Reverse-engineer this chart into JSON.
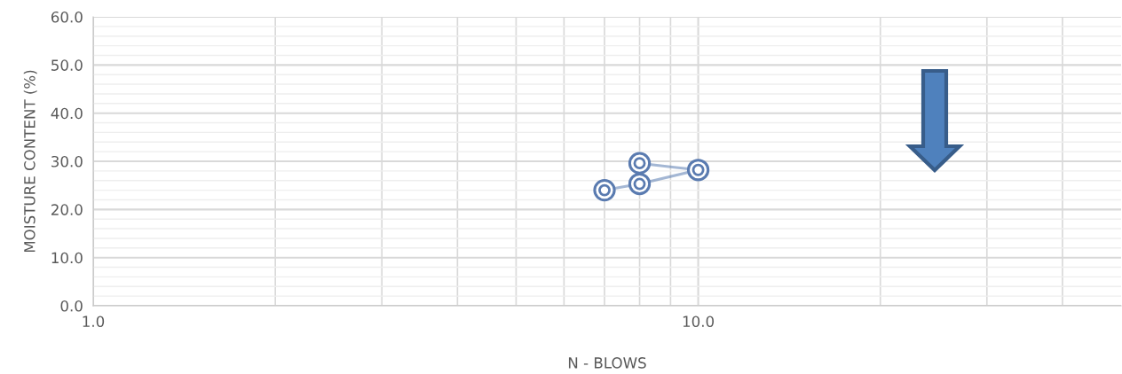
{
  "chart_data": {
    "type": "line",
    "xlabel": "N - BLOWS",
    "ylabel": "MOISTURE CONTENT (%)",
    "log": "x",
    "grid": true,
    "marker": "circle",
    "line_style": "solid",
    "x": [
      7,
      8,
      10,
      8
    ],
    "series": [
      {
        "color": "#5a7bb0",
        "values": [
          24.0,
          25.3,
          28.2,
          29.6
        ]
      }
    ],
    "xlim": [
      1,
      50
    ],
    "xticks": [
      {
        "value": 1,
        "label": "1.0"
      },
      {
        "value": 2,
        "label": null
      },
      {
        "value": 3,
        "label": null
      },
      {
        "value": 4,
        "label": null
      },
      {
        "value": 5,
        "label": null
      },
      {
        "value": 6,
        "label": null
      },
      {
        "value": 7,
        "label": null
      },
      {
        "value": 8,
        "label": null
      },
      {
        "value": 9,
        "label": null
      },
      {
        "value": 10,
        "label": "10.0"
      },
      {
        "value": 20,
        "label": null
      },
      {
        "value": 30,
        "label": null
      },
      {
        "value": 40,
        "label": null
      }
    ],
    "ylim": [
      0,
      60
    ],
    "yticks": [
      {
        "value": 0,
        "label": "0.0"
      },
      {
        "value": 2,
        "label": null
      },
      {
        "value": 4,
        "label": null
      },
      {
        "value": 6,
        "label": null
      },
      {
        "value": 8,
        "label": null
      },
      {
        "value": 10,
        "label": "10.0"
      },
      {
        "value": 12,
        "label": null
      },
      {
        "value": 14,
        "label": null
      },
      {
        "value": 16,
        "label": null
      },
      {
        "value": 18,
        "label": null
      },
      {
        "value": 20,
        "label": "20.0"
      },
      {
        "value": 22,
        "label": null
      },
      {
        "value": 24,
        "label": null
      },
      {
        "value": 26,
        "label": null
      },
      {
        "value": 28,
        "label": null
      },
      {
        "value": 30,
        "label": "30.0"
      },
      {
        "value": 32,
        "label": null
      },
      {
        "value": 34,
        "label": null
      },
      {
        "value": 36,
        "label": null
      },
      {
        "value": 38,
        "label": null
      },
      {
        "value": 40,
        "label": "40.0"
      },
      {
        "value": 42,
        "label": null
      },
      {
        "value": 44,
        "label": null
      },
      {
        "value": 46,
        "label": null
      },
      {
        "value": 48,
        "label": null
      },
      {
        "value": 50,
        "label": "50.0"
      },
      {
        "value": 52,
        "label": null
      },
      {
        "value": 54,
        "label": null
      },
      {
        "value": 56,
        "label": null
      },
      {
        "value": 58,
        "label": null
      },
      {
        "value": 60,
        "label": "60.0"
      }
    ]
  }
}
